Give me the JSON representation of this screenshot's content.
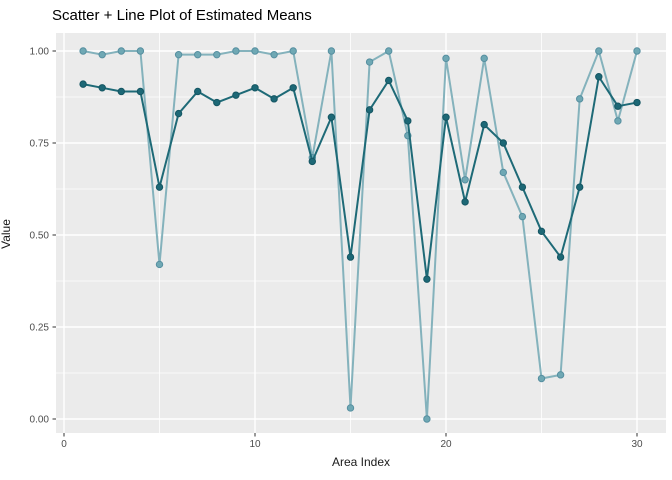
{
  "title": "Scatter + Line Plot of Estimated Means",
  "axes": {
    "x_label": "Area Index",
    "y_label": "Value",
    "x_tick_labels": [
      "0",
      "10",
      "20",
      "30"
    ],
    "y_tick_labels": [
      "1.00",
      "0.75",
      "0.50",
      "0.25",
      "0.00"
    ]
  },
  "colors": {
    "page_bg": "#ffffff",
    "panel_bg": "#ebebeb",
    "grid": "#ffffff",
    "tick_mark": "#333333",
    "tick_label": "#4d4d4d",
    "axis_title": "#1a1a1a",
    "title_text": "#000000",
    "light_series_line": "#84b2bc",
    "light_series_fill": "#6fa8b4",
    "light_series_stroke": "#568fa0",
    "dark_series_line": "#1e6a77",
    "dark_series_fill": "#1d6876",
    "dark_series_stroke": "#155663"
  },
  "chart_data": {
    "type": "line+scatter",
    "title": "Scatter + Line Plot of Estimated Means",
    "xlabel": "Area Index",
    "ylabel": "Value",
    "legend": "none",
    "grid": "white major+minor on grey panel",
    "marker": "filled-circle",
    "xlim": [
      -0.45,
      31.5
    ],
    "ylim": [
      -0.04,
      1.05
    ],
    "x_major_ticks": [
      0,
      10,
      20,
      30
    ],
    "x_minor_ticks": [
      5,
      15,
      25
    ],
    "y_major_ticks": [
      1.0,
      0.75,
      0.5,
      0.25,
      0.0
    ],
    "y_minor_ticks": [
      0.875,
      0.625,
      0.375,
      0.125
    ],
    "x": [
      1,
      2,
      3,
      4,
      5,
      6,
      7,
      8,
      9,
      10,
      11,
      12,
      13,
      14,
      15,
      16,
      17,
      18,
      19,
      20,
      21,
      22,
      23,
      24,
      25,
      26,
      27,
      28,
      29,
      30
    ],
    "series": [
      {
        "name": "light-teal-estimate",
        "color_key": "light",
        "values": [
          1.0,
          0.99,
          1.0,
          1.0,
          0.42,
          0.99,
          0.99,
          0.99,
          1.0,
          1.0,
          0.99,
          1.0,
          0.71,
          1.0,
          0.03,
          0.97,
          1.0,
          0.77,
          0.0,
          0.98,
          0.65,
          0.98,
          0.67,
          0.55,
          0.11,
          0.12,
          0.87,
          1.0,
          0.81,
          1.0
        ]
      },
      {
        "name": "dark-teal-estimate",
        "color_key": "dark",
        "values": [
          0.91,
          0.9,
          0.89,
          0.89,
          0.63,
          0.83,
          0.89,
          0.86,
          0.88,
          0.9,
          0.87,
          0.9,
          0.7,
          0.82,
          0.44,
          0.84,
          0.92,
          0.81,
          0.38,
          0.82,
          0.59,
          0.8,
          0.75,
          0.63,
          0.51,
          0.44,
          0.63,
          0.93,
          0.85,
          0.86
        ]
      }
    ]
  }
}
